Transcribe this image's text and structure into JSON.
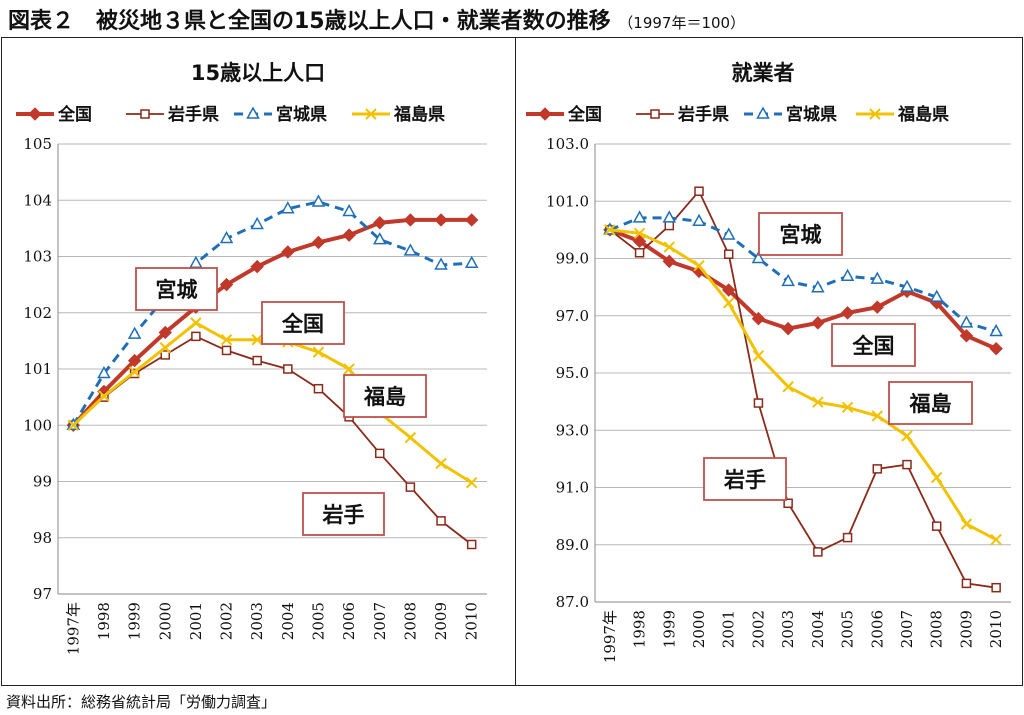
{
  "header": {
    "title": "図表２　被災地３県と全国の15歳以上人口・就業者数の推移",
    "subtitle": "（1997年＝100）"
  },
  "footer": {
    "source": "資料出所：総務省統計局「労働力調査」"
  },
  "colors": {
    "全国": "#c0392b",
    "岩手県": "#8b2a1a",
    "宮城県": "#1f6fb7",
    "福島県": "#f2c200",
    "label_border": "#c0504d"
  },
  "chart_data": [
    {
      "type": "line",
      "title": "15歳以上人口",
      "x": [
        "1997年",
        "1998",
        "1999",
        "2000",
        "2001",
        "2002",
        "2003",
        "2004",
        "2005",
        "2006",
        "2007",
        "2008",
        "2009",
        "2010"
      ],
      "ylim": [
        97,
        105
      ],
      "yticks": [
        "97",
        "98",
        "99",
        "100",
        "101",
        "102",
        "103",
        "104",
        "105"
      ],
      "grid": true,
      "legend": "top",
      "series": [
        {
          "name": "全国",
          "marker": "diamond",
          "values": [
            100,
            100.6,
            101.15,
            101.65,
            102.1,
            102.5,
            102.82,
            103.08,
            103.25,
            103.38,
            103.6,
            103.65,
            103.65,
            103.65
          ]
        },
        {
          "name": "岩手県",
          "marker": "square",
          "values": [
            100,
            100.5,
            100.92,
            101.25,
            101.58,
            101.33,
            101.15,
            101.0,
            100.65,
            100.15,
            99.5,
            98.9,
            98.3,
            97.88
          ]
        },
        {
          "name": "宮城県",
          "marker": "triangle",
          "values": [
            100,
            100.92,
            101.62,
            102.28,
            102.88,
            103.32,
            103.57,
            103.85,
            103.97,
            103.8,
            103.3,
            103.1,
            102.85,
            102.88
          ]
        },
        {
          "name": "福島県",
          "marker": "x",
          "values": [
            100,
            100.52,
            100.95,
            101.38,
            101.82,
            101.52,
            101.52,
            101.48,
            101.3,
            101.0,
            100.22,
            99.78,
            99.32,
            98.98
          ]
        }
      ],
      "annotations": [
        "宮城",
        "全国",
        "福島",
        "岩手"
      ]
    },
    {
      "type": "line",
      "title": "就業者",
      "x": [
        "1997年",
        "1998",
        "1999",
        "2000",
        "2001",
        "2002",
        "2003",
        "2004",
        "2005",
        "2006",
        "2007",
        "2008",
        "2009",
        "2010"
      ],
      "ylim": [
        87,
        103
      ],
      "yticks": [
        "87.0",
        "89.0",
        "91.0",
        "93.0",
        "95.0",
        "97.0",
        "99.0",
        "101.0",
        "103.0"
      ],
      "grid": true,
      "legend": "top",
      "series": [
        {
          "name": "全国",
          "marker": "diamond",
          "values": [
            100,
            99.6,
            98.9,
            98.55,
            97.9,
            96.9,
            96.55,
            96.75,
            97.1,
            97.3,
            97.85,
            97.45,
            96.3,
            95.85
          ]
        },
        {
          "name": "岩手県",
          "marker": "square",
          "values": [
            100,
            99.2,
            100.15,
            101.35,
            99.15,
            93.95,
            90.45,
            88.75,
            89.25,
            91.65,
            91.8,
            89.65,
            87.65,
            87.5
          ]
        },
        {
          "name": "宮城県",
          "marker": "triangle",
          "values": [
            100,
            100.42,
            100.42,
            100.3,
            99.82,
            99.0,
            98.2,
            97.98,
            98.38,
            98.28,
            98.0,
            97.65,
            96.75,
            96.45
          ]
        },
        {
          "name": "福島県",
          "marker": "x",
          "values": [
            100,
            99.88,
            99.4,
            98.75,
            97.45,
            95.6,
            94.52,
            93.98,
            93.8,
            93.5,
            92.8,
            91.35,
            89.72,
            89.18
          ]
        }
      ],
      "annotations": [
        "宮城",
        "全国",
        "福島",
        "岩手"
      ]
    }
  ]
}
